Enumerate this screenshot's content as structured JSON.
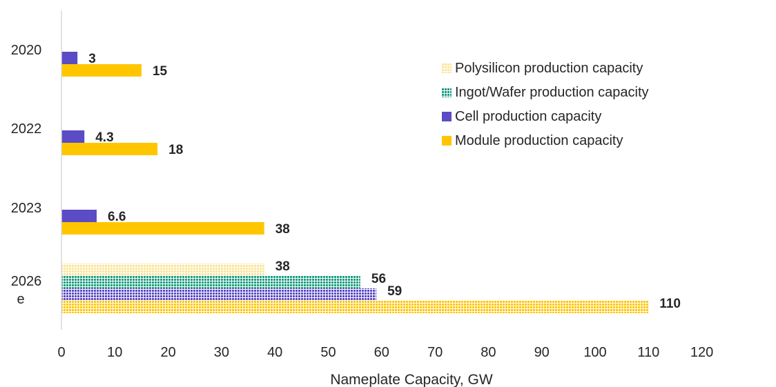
{
  "chart_data": {
    "type": "bar",
    "orientation": "horizontal",
    "title": "",
    "xlabel": "Nameplate Capacity, GW",
    "ylabel": "",
    "xlim": [
      0,
      120
    ],
    "x_ticks": [
      "0",
      "10",
      "20",
      "30",
      "40",
      "50",
      "60",
      "70",
      "80",
      "90",
      "100",
      "110",
      "120"
    ],
    "grid": false,
    "legend_position": "top-right",
    "categories": [
      {
        "label_lines": [
          "2020"
        ]
      },
      {
        "label_lines": [
          "2022"
        ]
      },
      {
        "label_lines": [
          "2023"
        ]
      },
      {
        "label_lines": [
          "2026",
          "e"
        ]
      }
    ],
    "series": [
      {
        "name": "Polysilicon production capacity",
        "color": "#FBE59A",
        "pattern": "dotted",
        "values": [
          null,
          null,
          null,
          38
        ],
        "labels": [
          "",
          "",
          "",
          "38"
        ]
      },
      {
        "name": "Ingot/Wafer production capacity",
        "color": "#1E9E82",
        "pattern": "dotted",
        "values": [
          null,
          null,
          null,
          56
        ],
        "labels": [
          "",
          "",
          "",
          "56"
        ]
      },
      {
        "name": "Cell production capacity",
        "color": "#5B4BC4",
        "pattern": "solid",
        "values": [
          3,
          4.3,
          6.6,
          59
        ],
        "labels": [
          "3",
          "4.3",
          "6.6",
          "59"
        ]
      },
      {
        "name": "Module production capacity",
        "color": "#FFC600",
        "pattern": "solid",
        "values": [
          15,
          18,
          38,
          110
        ],
        "labels": [
          "15",
          "18",
          "38",
          "110"
        ]
      }
    ],
    "colors": {
      "axis": "#D9D9D9",
      "text": "#262626"
    }
  }
}
